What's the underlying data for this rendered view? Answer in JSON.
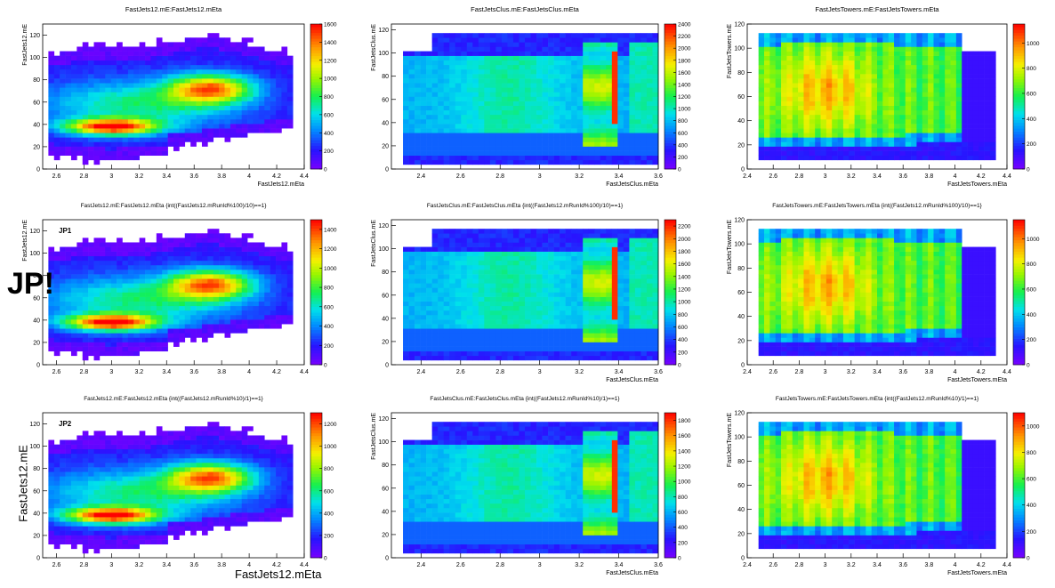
{
  "figure": {
    "row_label": "JP!",
    "global_xlabel": "FastJets12.mEta",
    "global_ylabel": "FastJets12.mE"
  },
  "chart_data": [
    {
      "type": "heatmap",
      "title": "FastJets12.mE:FastJets12.mEta",
      "xlabel": "FastJets12.mEta",
      "ylabel": "FastJets12.mE",
      "panel_label": "",
      "xlim": [
        2.5,
        4.4
      ],
      "ylim": [
        0,
        130
      ],
      "xticks": [
        "2.6",
        "2.8",
        "3",
        "3.2",
        "3.4",
        "3.6",
        "3.8",
        "4",
        "4.2",
        "4.4"
      ],
      "yticks": [
        "0",
        "20",
        "40",
        "60",
        "80",
        "100",
        "120"
      ],
      "zlim": [
        0,
        1600
      ],
      "zticks": [
        "0",
        "200",
        "400",
        "600",
        "800",
        "1000",
        "1200",
        "1400",
        "1600"
      ],
      "shape": "f12"
    },
    {
      "type": "heatmap",
      "title": "FastJetsClus.mE:FastJetsClus.mEta",
      "xlabel": "FastJetsClus.mEta",
      "ylabel": "FastJetsClus.mE",
      "panel_label": "",
      "xlim": [
        2.25,
        3.6
      ],
      "ylim": [
        0,
        125
      ],
      "xticks": [
        "2.4",
        "2.6",
        "2.8",
        "3",
        "3.2",
        "3.4",
        "3.6"
      ],
      "yticks": [
        "0",
        "20",
        "40",
        "60",
        "80",
        "100",
        "120"
      ],
      "zlim": [
        0,
        2400
      ],
      "zticks": [
        "0",
        "200",
        "400",
        "600",
        "800",
        "1000",
        "1200",
        "1400",
        "1600",
        "1800",
        "2000",
        "2200",
        "2400"
      ],
      "shape": "clus"
    },
    {
      "type": "heatmap",
      "title": "FastJetsTowers.mE:FastJetsTowers.mEta",
      "xlabel": "FastJetsTowers.mEta",
      "ylabel": "FastJetsTowers.mE",
      "panel_label": "",
      "xlim": [
        2.4,
        4.4
      ],
      "ylim": [
        0,
        120
      ],
      "xticks": [
        "2.4",
        "2.6",
        "2.8",
        "3",
        "3.2",
        "3.4",
        "3.6",
        "3.8",
        "4",
        "4.2",
        "4.4"
      ],
      "yticks": [
        "0",
        "20",
        "40",
        "60",
        "80",
        "100",
        "120"
      ],
      "zlim": [
        0,
        1150
      ],
      "zticks": [
        "0",
        "200",
        "400",
        "600",
        "800",
        "1000"
      ],
      "shape": "tow"
    },
    {
      "type": "heatmap",
      "title": "FastJets12.mE:FastJets12.mEta {int((FastJets12.mRunId%100)/10)==1}",
      "xlabel": "",
      "ylabel": "FastJets12.mE",
      "panel_label": "JP1",
      "xlim": [
        2.5,
        4.4
      ],
      "ylim": [
        0,
        130
      ],
      "xticks": [
        "2.6",
        "2.8",
        "3",
        "3.2",
        "3.4",
        "3.6",
        "3.8",
        "4",
        "4.2",
        "4.4"
      ],
      "yticks": [
        "0",
        "20",
        "40",
        "60",
        "80",
        "100",
        "120"
      ],
      "zlim": [
        0,
        1500
      ],
      "zticks": [
        "0",
        "200",
        "400",
        "600",
        "800",
        "1000",
        "1200",
        "1400"
      ],
      "shape": "f12"
    },
    {
      "type": "heatmap",
      "title": "FastJetsClus.mE:FastJetsClus.mEta {int((FastJets12.mRunId%100)/10)==1}",
      "xlabel": "FastJetsClus.mEta",
      "ylabel": "FastJetsClus.mE",
      "panel_label": "",
      "xlim": [
        2.25,
        3.6
      ],
      "ylim": [
        0,
        125
      ],
      "xticks": [
        "2.4",
        "2.6",
        "2.8",
        "3",
        "3.2",
        "3.4",
        "3.6"
      ],
      "yticks": [
        "0",
        "20",
        "40",
        "60",
        "80",
        "100",
        "120"
      ],
      "zlim": [
        0,
        2300
      ],
      "zticks": [
        "0",
        "200",
        "400",
        "600",
        "800",
        "1000",
        "1200",
        "1400",
        "1600",
        "1800",
        "2000",
        "2200"
      ],
      "shape": "clus"
    },
    {
      "type": "heatmap",
      "title": "FastJetsTowers.mE:FastJetsTowers.mEta {int((FastJets12.mRunId%100)/10)==1}",
      "xlabel": "FastJetsTowers.mEta",
      "ylabel": "FastJetsTowers.mE",
      "panel_label": "",
      "xlim": [
        2.4,
        4.4
      ],
      "ylim": [
        0,
        120
      ],
      "xticks": [
        "2.4",
        "2.6",
        "2.8",
        "3",
        "3.2",
        "3.4",
        "3.6",
        "3.8",
        "4",
        "4.2",
        "4.4"
      ],
      "yticks": [
        "0",
        "20",
        "40",
        "60",
        "80",
        "100",
        "120"
      ],
      "zlim": [
        0,
        1150
      ],
      "zticks": [
        "0",
        "200",
        "400",
        "600",
        "800",
        "1000"
      ],
      "shape": "tow"
    },
    {
      "type": "heatmap",
      "title": "FastJets12.mE:FastJets12.mEta {int((FastJets12.mRunId%10)/1)==1}",
      "xlabel": "",
      "ylabel": "",
      "panel_label": "JP2",
      "xlim": [
        2.5,
        4.4
      ],
      "ylim": [
        0,
        130
      ],
      "xticks": [
        "2.6",
        "2.8",
        "3",
        "3.2",
        "3.4",
        "3.6",
        "3.8",
        "4",
        "4.2",
        "4.4"
      ],
      "yticks": [
        "0",
        "20",
        "40",
        "60",
        "80",
        "100",
        "120"
      ],
      "zlim": [
        0,
        1300
      ],
      "zticks": [
        "0",
        "200",
        "400",
        "600",
        "800",
        "1000",
        "1200"
      ],
      "shape": "f12"
    },
    {
      "type": "heatmap",
      "title": "FastJetsClus.mE:FastJetsClus.mEta {int((FastJets12.mRunId%10)/1)==1}",
      "xlabel": "FastJetsClus.mEta",
      "ylabel": "FastJetsClus.mE",
      "panel_label": "",
      "xlim": [
        2.25,
        3.6
      ],
      "ylim": [
        0,
        125
      ],
      "xticks": [
        "2.4",
        "2.6",
        "2.8",
        "3",
        "3.2",
        "3.4",
        "3.6"
      ],
      "yticks": [
        "0",
        "20",
        "40",
        "60",
        "80",
        "100",
        "120"
      ],
      "zlim": [
        0,
        1900
      ],
      "zticks": [
        "0",
        "200",
        "400",
        "600",
        "800",
        "1000",
        "1200",
        "1400",
        "1600",
        "1800"
      ],
      "shape": "clus"
    },
    {
      "type": "heatmap",
      "title": "FastJetsTowers.mE:FastJetsTowers.mEta {int((FastJets12.mRunId%10)/1)==1}",
      "xlabel": "FastJetsTowers.mEta",
      "ylabel": "FastJetsTowers.mE",
      "panel_label": "",
      "xlim": [
        2.4,
        4.4
      ],
      "ylim": [
        0,
        120
      ],
      "xticks": [
        "2.4",
        "2.6",
        "2.8",
        "3",
        "3.2",
        "3.4",
        "3.6",
        "3.8",
        "4",
        "4.2",
        "4.4"
      ],
      "yticks": [
        "0",
        "20",
        "40",
        "60",
        "80",
        "100",
        "120"
      ],
      "zlim": [
        0,
        1100
      ],
      "zticks": [
        "0",
        "200",
        "400",
        "600",
        "800",
        "1000"
      ],
      "shape": "tow"
    }
  ]
}
